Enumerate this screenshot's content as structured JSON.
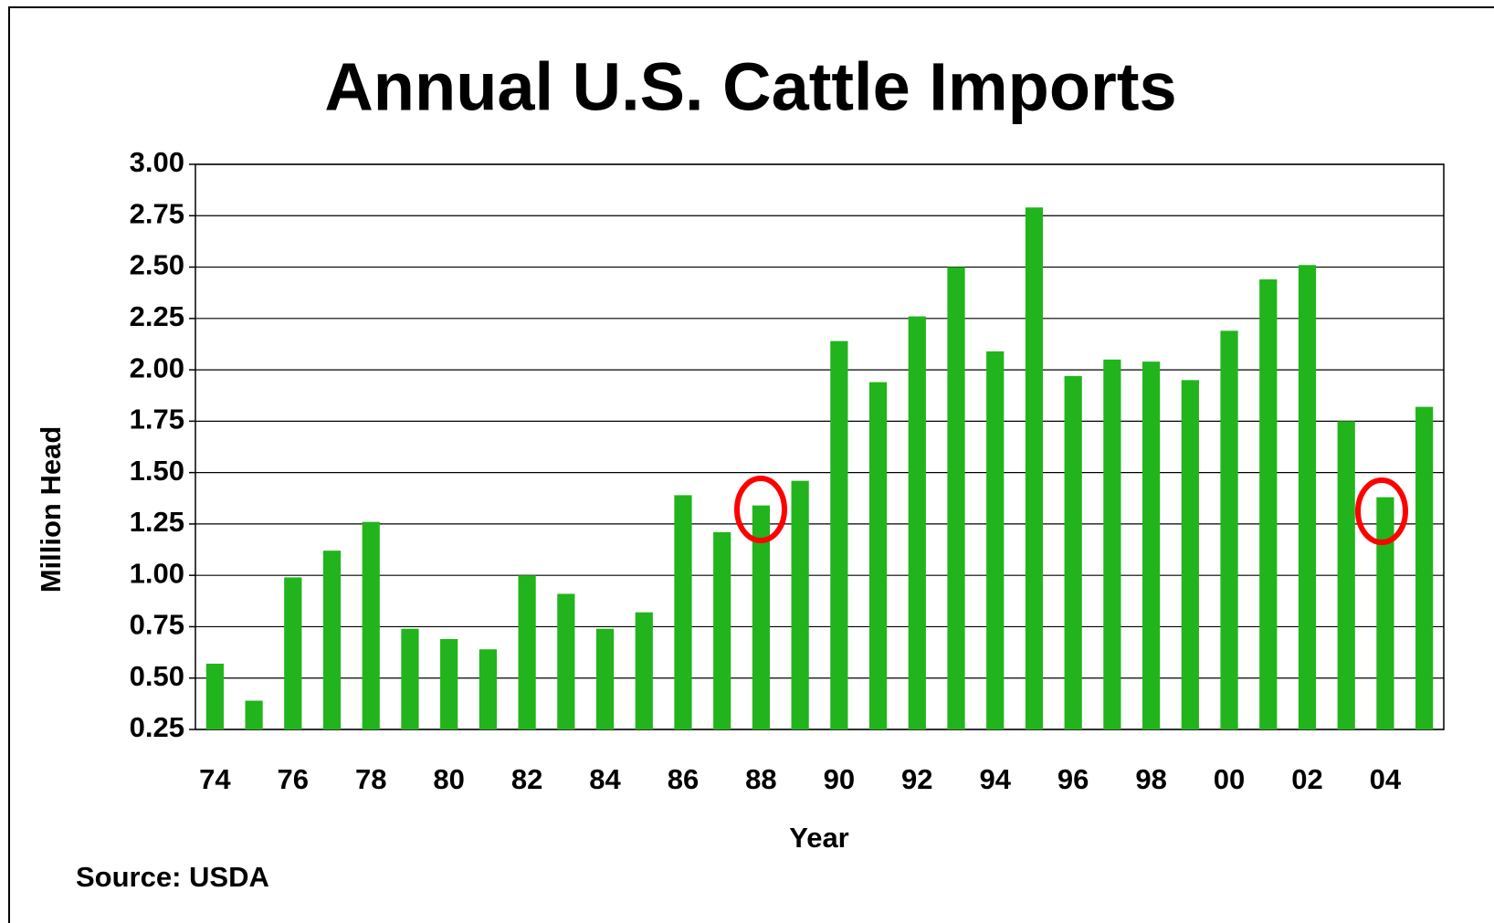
{
  "chart_data": {
    "type": "bar",
    "title": "Annual U.S. Cattle Imports",
    "categories": [
      "74",
      null,
      "76",
      null,
      "78",
      null,
      "80",
      null,
      "82",
      null,
      "84",
      null,
      "86",
      null,
      "88",
      null,
      "90",
      null,
      "92",
      null,
      "94",
      null,
      "96",
      null,
      "98",
      null,
      "00",
      null,
      "02",
      null,
      "04",
      null
    ],
    "values": [
      0.57,
      0.39,
      0.99,
      1.12,
      1.26,
      0.74,
      0.69,
      0.64,
      1.0,
      0.91,
      0.74,
      0.82,
      1.39,
      1.21,
      1.34,
      1.46,
      2.14,
      1.94,
      2.26,
      2.5,
      2.09,
      2.79,
      1.97,
      2.05,
      2.04,
      1.95,
      2.19,
      2.44,
      2.51,
      1.75,
      1.38,
      1.82
    ],
    "color": "#22b41c",
    "x_label": "Year",
    "y_label": "Million Head",
    "source": "Source:  USDA",
    "ylim": [
      0.25,
      3.0
    ],
    "yticks": [
      {
        "value": 0.25,
        "label": "0.25"
      },
      {
        "value": 0.5,
        "label": "0.50"
      },
      {
        "value": 0.75,
        "label": "0.75"
      },
      {
        "value": 1.0,
        "label": "1.00"
      },
      {
        "value": 1.25,
        "label": "1.25"
      },
      {
        "value": 1.5,
        "label": "1.50"
      },
      {
        "value": 1.75,
        "label": "1.75"
      },
      {
        "value": 2.0,
        "label": "2.00"
      },
      {
        "value": 2.25,
        "label": "2.25"
      },
      {
        "value": 2.5,
        "label": "2.50"
      },
      {
        "value": 2.75,
        "label": "2.75"
      },
      {
        "value": 3.0,
        "label": "3.00"
      }
    ],
    "grid": true
  }
}
